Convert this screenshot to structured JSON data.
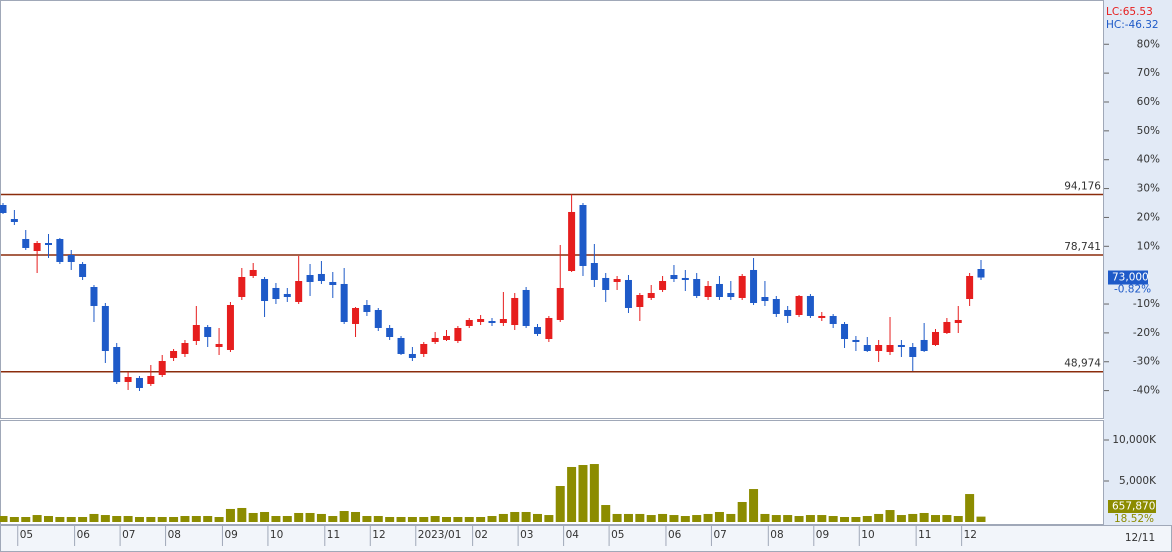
{
  "chart_data": {
    "type": "candlestick",
    "categories": [
      null,
      null,
      "05",
      null,
      null,
      null,
      null,
      "06",
      null,
      null,
      null,
      "07",
      null,
      null,
      null,
      "08",
      null,
      null,
      null,
      null,
      "09",
      null,
      null,
      null,
      "10",
      null,
      null,
      null,
      null,
      "11",
      null,
      null,
      null,
      "12",
      null,
      null,
      null,
      "2023/01",
      null,
      null,
      null,
      null,
      "02",
      null,
      null,
      null,
      "03",
      null,
      null,
      null,
      "04",
      null,
      null,
      null,
      "05",
      null,
      null,
      null,
      null,
      "06",
      null,
      null,
      null,
      "07",
      null,
      null,
      null,
      null,
      "08",
      null,
      null,
      null,
      "09",
      null,
      null,
      null,
      "10",
      null,
      null,
      null,
      null,
      "11",
      null,
      null,
      null,
      "12",
      null
    ],
    "open": [
      91490,
      87920,
      82820,
      79760,
      81800,
      82820,
      78740,
      76450,
      70580,
      65740,
      55280,
      46360,
      47380,
      45850,
      48140,
      52480,
      53500,
      56810,
      60380,
      55280,
      54520,
      68030,
      73390,
      72620,
      70330,
      68800,
      66760,
      73640,
      73900,
      71860,
      71350,
      61150,
      65990,
      64720,
      60130,
      57580,
      53500,
      53500,
      56560,
      57070,
      56810,
      60640,
      61660,
      61910,
      61400,
      60890,
      69820,
      60380,
      57320,
      62170,
      74660,
      91490,
      76700,
      72880,
      71860,
      72370,
      65480,
      67780,
      69820,
      73640,
      72880,
      72620,
      68030,
      71350,
      69050,
      67780,
      74920,
      68030,
      67520,
      64720,
      63440,
      68290,
      62680,
      63190,
      61150,
      57070,
      55790,
      54260,
      54010,
      55790,
      55280,
      57070,
      55790,
      58850,
      61400,
      67520,
      75170
    ],
    "high": [
      92000,
      90220,
      85120,
      82310,
      84100,
      83080,
      80020,
      76960,
      71090,
      66500,
      56300,
      48910,
      47890,
      50690,
      53240,
      54770,
      57070,
      65740,
      60890,
      60130,
      66760,
      75430,
      76700,
      73130,
      71600,
      70330,
      78490,
      76450,
      77210,
      74410,
      75430,
      65480,
      67270,
      65230,
      60890,
      58090,
      55280,
      56560,
      59110,
      59620,
      60640,
      62680,
      63440,
      62680,
      69310,
      69050,
      70580,
      61150,
      63190,
      81290,
      94176,
      92000,
      81550,
      74150,
      73390,
      73640,
      69050,
      71090,
      73390,
      76190,
      74920,
      74150,
      72110,
      73390,
      72110,
      73900,
      77980,
      72110,
      68290,
      65740,
      68540,
      68800,
      64210,
      63700,
      61660,
      58090,
      57830,
      57070,
      62930,
      57070,
      56300,
      61400,
      59870,
      62680,
      65740,
      74150,
      77470
    ],
    "low": [
      89200,
      86390,
      80020,
      74150,
      77980,
      76450,
      74920,
      72370,
      61660,
      51200,
      45850,
      44320,
      44060,
      45340,
      47630,
      51710,
      52730,
      55790,
      55280,
      53240,
      54010,
      67270,
      72880,
      62930,
      66250,
      66760,
      66250,
      68290,
      71350,
      67780,
      61150,
      57830,
      63190,
      59360,
      57070,
      53240,
      51710,
      52730,
      56050,
      56810,
      56300,
      60130,
      60890,
      60640,
      60640,
      59620,
      60130,
      58090,
      56560,
      61660,
      74410,
      73390,
      70580,
      66760,
      69820,
      63950,
      61910,
      67270,
      69310,
      71860,
      69560,
      67780,
      67270,
      67270,
      67270,
      67270,
      65990,
      65740,
      62930,
      61400,
      62930,
      62680,
      61910,
      60130,
      55030,
      54260,
      54010,
      51460,
      53240,
      52730,
      49160,
      54010,
      55540,
      58600,
      58850,
      65740,
      72370
    ],
    "close": [
      89450,
      87160,
      80530,
      81800,
      81290,
      76960,
      76960,
      73130,
      65740,
      54260,
      46360,
      47630,
      44830,
      47890,
      51710,
      54260,
      56300,
      60890,
      57830,
      56050,
      65990,
      73130,
      74920,
      67010,
      67520,
      68030,
      72110,
      71860,
      72110,
      71090,
      61660,
      65230,
      64210,
      60130,
      57830,
      53500,
      52480,
      56050,
      57580,
      58090,
      60130,
      62170,
      62420,
      61400,
      62420,
      67780,
      60640,
      58600,
      62680,
      70330,
      89710,
      75940,
      72370,
      69820,
      72620,
      65230,
      68540,
      69050,
      72110,
      72620,
      72370,
      68290,
      70840,
      68030,
      68030,
      73390,
      66500,
      67010,
      63700,
      63190,
      68290,
      63190,
      63190,
      61150,
      57320,
      56560,
      54260,
      55790,
      55790,
      55280,
      52730,
      54260,
      59110,
      61660,
      62170,
      73390,
      73000
    ],
    "up_color": "#e61e1e",
    "down_color": "#1e5ac8",
    "ylim": [
      37176,
      143766
    ],
    "yticks": [
      {
        "value": 132480,
        "label": "80%"
      },
      {
        "value": 125120,
        "label": "70%"
      },
      {
        "value": 117760,
        "label": "60%"
      },
      {
        "value": 110400,
        "label": "50%"
      },
      {
        "value": 103040,
        "label": "40%"
      },
      {
        "value": 95680,
        "label": "30%"
      },
      {
        "value": 88320,
        "label": "20%"
      },
      {
        "value": 80960,
        "label": "10%"
      },
      {
        "value": 66240,
        "label": "-10%"
      },
      {
        "value": 58880,
        "label": "-20%"
      },
      {
        "value": 51520,
        "label": "-30%"
      },
      {
        "value": 44160,
        "label": "-40%"
      }
    ],
    "levels": [
      {
        "value": 94176,
        "label": "94,176"
      },
      {
        "value": 78741,
        "label": "78,741"
      },
      {
        "value": 48974,
        "label": "48,974"
      }
    ],
    "level_color": "#8b2c0c",
    "lc_label": "LC:65.53",
    "hc_label": "HC:-46.32",
    "last_price_label": "73,000",
    "change_label": "-0.82%",
    "date_label": "12/11",
    "volume": {
      "values": [
        730,
        610,
        610,
        850,
        730,
        610,
        610,
        610,
        980,
        850,
        730,
        730,
        610,
        610,
        610,
        610,
        730,
        730,
        730,
        610,
        1590,
        1710,
        1100,
        1220,
        730,
        730,
        1100,
        1100,
        980,
        730,
        1340,
        1220,
        730,
        730,
        610,
        610,
        610,
        610,
        730,
        610,
        610,
        610,
        610,
        730,
        980,
        1220,
        1220,
        980,
        850,
        4390,
        6710,
        6950,
        7070,
        2070,
        980,
        980,
        980,
        850,
        980,
        850,
        730,
        850,
        980,
        1220,
        980,
        2440,
        4020,
        980,
        850,
        850,
        730,
        850,
        850,
        730,
        610,
        610,
        730,
        980,
        1460,
        850,
        980,
        1100,
        850,
        850,
        730,
        3410,
        657.87
      ],
      "color": "#8c8c00",
      "ylim": [
        0,
        12440
      ],
      "yticks": [
        {
          "value": 5000,
          "label": "5,000K"
        },
        {
          "value": 10000,
          "label": "10,000K"
        }
      ],
      "last_label": "657,870",
      "ratio_label": "18.52%"
    }
  }
}
